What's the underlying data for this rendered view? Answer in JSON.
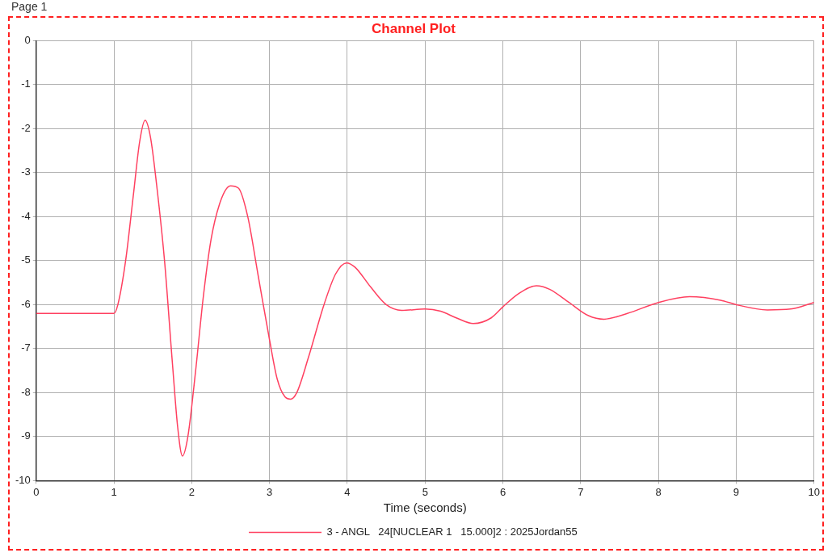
{
  "chart_data": {
    "type": "line",
    "title": "Channel Plot",
    "xlabel": "Time (seconds)",
    "annotations": [
      "Page 1"
    ],
    "xlim": [
      0,
      10
    ],
    "xticks": [
      0,
      1,
      2,
      3,
      4,
      5,
      6,
      7,
      8,
      9,
      10
    ],
    "ylim": [
      -10,
      0
    ],
    "yticks": [
      -10,
      -9,
      -8,
      -7,
      -6,
      -5,
      -4,
      -3,
      -2,
      -1,
      0
    ],
    "grid": true,
    "legend": "bottom",
    "marker": "none",
    "line_style": "solid",
    "x": [
      0,
      1.0,
      1.05,
      1.15,
      1.25,
      1.33,
      1.4,
      1.47,
      1.55,
      1.65,
      1.75,
      1.82,
      1.88,
      1.95,
      2.05,
      2.15,
      2.25,
      2.38,
      2.5,
      2.6,
      2.72,
      2.85,
      3.0,
      3.1,
      3.2,
      3.27,
      3.35,
      3.5,
      3.7,
      3.85,
      3.99,
      4.1,
      4.3,
      4.5,
      4.7,
      5.0,
      5.2,
      5.4,
      5.62,
      5.85,
      6.0,
      6.2,
      6.43,
      6.6,
      6.85,
      7.1,
      7.3,
      7.6,
      8.0,
      8.4,
      8.8,
      9.0,
      9.4,
      9.7,
      10
    ],
    "series": [
      {
        "name": "3 - ANGL   24[NUCLEAR 1   15.000]2 : 2025Jordan55",
        "color": "#ff4060",
        "values": [
          -6.2,
          -6.2,
          -6.0,
          -5.0,
          -3.5,
          -2.3,
          -1.81,
          -2.2,
          -3.3,
          -5.0,
          -7.3,
          -8.8,
          -9.44,
          -9.0,
          -7.5,
          -5.8,
          -4.5,
          -3.6,
          -3.3,
          -3.35,
          -4.0,
          -5.3,
          -6.8,
          -7.7,
          -8.1,
          -8.15,
          -8.0,
          -7.2,
          -6.0,
          -5.3,
          -5.05,
          -5.15,
          -5.6,
          -6.0,
          -6.13,
          -6.1,
          -6.15,
          -6.3,
          -6.43,
          -6.3,
          -6.05,
          -5.75,
          -5.57,
          -5.65,
          -5.95,
          -6.25,
          -6.33,
          -6.2,
          -5.95,
          -5.82,
          -5.9,
          -6.0,
          -6.12,
          -6.1,
          -5.95
        ]
      }
    ]
  }
}
